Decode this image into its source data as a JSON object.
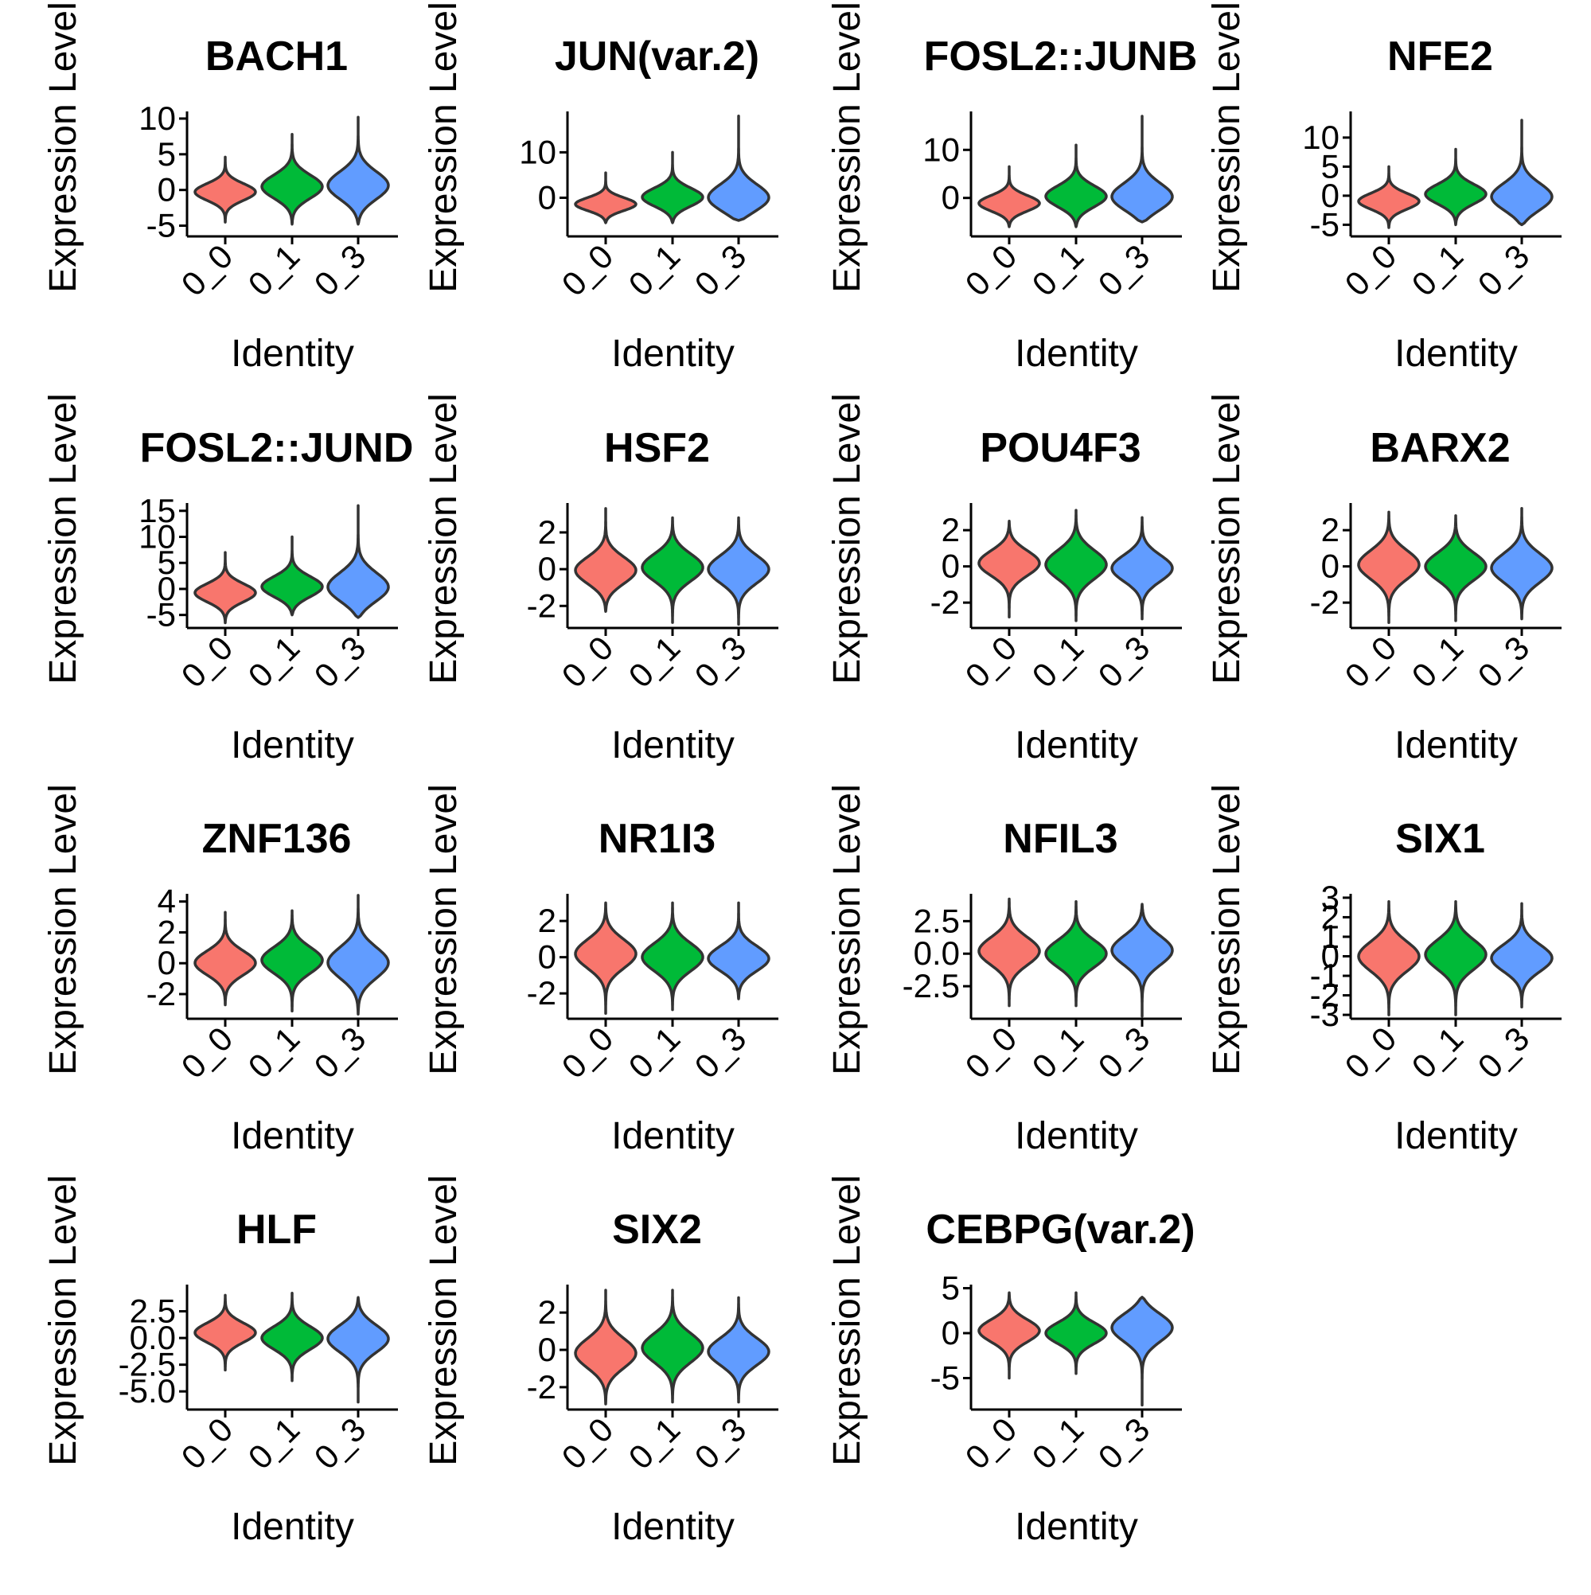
{
  "group_colors": {
    "0_0": "#F8766D",
    "0_1": "#00BA38",
    "0_3": "#619CFF"
  },
  "chart_data": [
    {
      "type": "violin",
      "title": "BACH1",
      "xlabel": "Identity",
      "ylabel": "Expression Level",
      "categories": [
        "0_0",
        "0_1",
        "0_3"
      ],
      "ylim": [
        -6.5,
        11
      ],
      "yticks": [
        -5,
        0,
        5,
        10
      ],
      "ytick_labels": [
        "-5",
        "0",
        "5",
        "10"
      ],
      "series": [
        {
          "name": "0_0",
          "min": -4.5,
          "median": -0.3,
          "max": 4.6
        },
        {
          "name": "0_1",
          "min": -4.8,
          "median": 0.4,
          "max": 7.8
        },
        {
          "name": "0_3",
          "min": -4.8,
          "median": 0.5,
          "max": 10.2
        }
      ]
    },
    {
      "type": "violin",
      "title": "JUN(var.2)",
      "xlabel": "Identity",
      "ylabel": "Expression Level",
      "categories": [
        "0_0",
        "0_1",
        "0_3"
      ],
      "ylim": [
        -8.5,
        19
      ],
      "yticks": [
        0,
        10
      ],
      "ytick_labels": [
        "0",
        "10"
      ],
      "series": [
        {
          "name": "0_0",
          "min": -5.5,
          "median": -1.5,
          "max": 5.5
        },
        {
          "name": "0_1",
          "min": -5.5,
          "median": 0.0,
          "max": 10
        },
        {
          "name": "0_3",
          "min": -5.0,
          "median": -0.5,
          "max": 18
        }
      ]
    },
    {
      "type": "violin",
      "title": "FOSL2::JUNB",
      "xlabel": "Identity",
      "ylabel": "Expression Level",
      "categories": [
        "0_0",
        "0_1",
        "0_3"
      ],
      "ylim": [
        -8,
        18
      ],
      "yticks": [
        0,
        10
      ],
      "ytick_labels": [
        "0",
        "10"
      ],
      "series": [
        {
          "name": "0_0",
          "min": -6,
          "median": -1.2,
          "max": 6.5
        },
        {
          "name": "0_1",
          "min": -6,
          "median": 0.2,
          "max": 11
        },
        {
          "name": "0_3",
          "min": -5,
          "median": -0.2,
          "max": 17
        }
      ]
    },
    {
      "type": "violin",
      "title": "NFE2",
      "xlabel": "Identity",
      "ylabel": "Expression Level",
      "categories": [
        "0_0",
        "0_1",
        "0_3"
      ],
      "ylim": [
        -7,
        14.5
      ],
      "yticks": [
        -5,
        0,
        5,
        10
      ],
      "ytick_labels": [
        "-5",
        "0",
        "5",
        "10"
      ],
      "series": [
        {
          "name": "0_0",
          "min": -5.5,
          "median": -1.0,
          "max": 5.0
        },
        {
          "name": "0_1",
          "min": -5,
          "median": 0.2,
          "max": 8
        },
        {
          "name": "0_3",
          "min": -5,
          "median": -0.5,
          "max": 13
        }
      ]
    },
    {
      "type": "violin",
      "title": "FOSL2::JUND",
      "xlabel": "Identity",
      "ylabel": "Expression Level",
      "categories": [
        "0_0",
        "0_1",
        "0_3"
      ],
      "ylim": [
        -7.5,
        16.5
      ],
      "yticks": [
        -5,
        0,
        5,
        10,
        15
      ],
      "ytick_labels": [
        "-5",
        "0",
        "5",
        "10",
        "15"
      ],
      "series": [
        {
          "name": "0_0",
          "min": -6.5,
          "median": -0.8,
          "max": 7
        },
        {
          "name": "0_1",
          "min": -5,
          "median": 0.3,
          "max": 10
        },
        {
          "name": "0_3",
          "min": -5.5,
          "median": 0.0,
          "max": 16
        }
      ]
    },
    {
      "type": "violin",
      "title": "HSF2",
      "xlabel": "Identity",
      "ylabel": "Expression Level",
      "categories": [
        "0_0",
        "0_1",
        "0_3"
      ],
      "ylim": [
        -3.2,
        3.6
      ],
      "yticks": [
        -2,
        0,
        2
      ],
      "ytick_labels": [
        "-2",
        "0",
        "2"
      ],
      "series": [
        {
          "name": "0_0",
          "min": -2.3,
          "median": -0.1,
          "max": 3.3
        },
        {
          "name": "0_1",
          "min": -2.9,
          "median": 0.1,
          "max": 2.8
        },
        {
          "name": "0_3",
          "min": -3.0,
          "median": 0.0,
          "max": 2.8
        }
      ]
    },
    {
      "type": "violin",
      "title": "POU4F3",
      "xlabel": "Identity",
      "ylabel": "Expression Level",
      "categories": [
        "0_0",
        "0_1",
        "0_3"
      ],
      "ylim": [
        -3.4,
        3.5
      ],
      "yticks": [
        -2,
        0,
        2
      ],
      "ytick_labels": [
        "-2",
        "0",
        "2"
      ],
      "series": [
        {
          "name": "0_0",
          "min": -2.8,
          "median": 0.2,
          "max": 2.5
        },
        {
          "name": "0_1",
          "min": -3.0,
          "median": 0.1,
          "max": 3.1
        },
        {
          "name": "0_3",
          "min": -2.9,
          "median": -0.1,
          "max": 2.7
        }
      ]
    },
    {
      "type": "violin",
      "title": "BARX2",
      "xlabel": "Identity",
      "ylabel": "Expression Level",
      "categories": [
        "0_0",
        "0_1",
        "0_3"
      ],
      "ylim": [
        -3.4,
        3.5
      ],
      "yticks": [
        -2,
        0,
        2
      ],
      "ytick_labels": [
        "-2",
        "0",
        "2"
      ],
      "series": [
        {
          "name": "0_0",
          "min": -3.1,
          "median": 0.1,
          "max": 3.0
        },
        {
          "name": "0_1",
          "min": -3.0,
          "median": 0.0,
          "max": 2.8
        },
        {
          "name": "0_3",
          "min": -2.9,
          "median": -0.1,
          "max": 3.2
        }
      ]
    },
    {
      "type": "violin",
      "title": "ZNF136",
      "xlabel": "Identity",
      "ylabel": "Expression Level",
      "categories": [
        "0_0",
        "0_1",
        "0_3"
      ],
      "ylim": [
        -3.6,
        4.5
      ],
      "yticks": [
        -2,
        0,
        2,
        4
      ],
      "ytick_labels": [
        "-2",
        "0",
        "2",
        "4"
      ],
      "series": [
        {
          "name": "0_0",
          "min": -2.7,
          "median": 0.0,
          "max": 3.3
        },
        {
          "name": "0_1",
          "min": -3.1,
          "median": 0.2,
          "max": 3.4
        },
        {
          "name": "0_3",
          "min": -3.3,
          "median": 0.0,
          "max": 4.4
        }
      ]
    },
    {
      "type": "violin",
      "title": "NR1I3",
      "xlabel": "Identity",
      "ylabel": "Expression Level",
      "categories": [
        "0_0",
        "0_1",
        "0_3"
      ],
      "ylim": [
        -3.4,
        3.5
      ],
      "yticks": [
        -2,
        0,
        2
      ],
      "ytick_labels": [
        "-2",
        "0",
        "2"
      ],
      "series": [
        {
          "name": "0_0",
          "min": -3.1,
          "median": 0.2,
          "max": 3.0
        },
        {
          "name": "0_1",
          "min": -2.9,
          "median": 0.0,
          "max": 3.0
        },
        {
          "name": "0_3",
          "min": -2.3,
          "median": -0.1,
          "max": 3.0
        }
      ]
    },
    {
      "type": "violin",
      "title": "NFIL3",
      "xlabel": "Identity",
      "ylabel": "Expression Level",
      "categories": [
        "0_0",
        "0_1",
        "0_3"
      ],
      "ylim": [
        -5.0,
        4.6
      ],
      "yticks": [
        -2.5,
        0.0,
        2.5
      ],
      "ytick_labels": [
        "-2.5",
        "0.0",
        "2.5"
      ],
      "series": [
        {
          "name": "0_0",
          "min": -4.0,
          "median": 0.2,
          "max": 4.2
        },
        {
          "name": "0_1",
          "min": -4.0,
          "median": 0.0,
          "max": 4.0
        },
        {
          "name": "0_3",
          "min": -4.8,
          "median": 0.3,
          "max": 3.8
        }
      ]
    },
    {
      "type": "violin",
      "title": "SIX1",
      "xlabel": "Identity",
      "ylabel": "Expression Level",
      "categories": [
        "0_0",
        "0_1",
        "0_3"
      ],
      "ylim": [
        -3.2,
        3.2
      ],
      "yticks": [
        -3,
        -2,
        -1,
        0,
        1,
        2,
        3
      ],
      "ytick_labels": [
        "-3",
        "-2",
        "-1",
        "0",
        "1",
        "2",
        "3"
      ],
      "series": [
        {
          "name": "0_0",
          "min": -3.0,
          "median": 0.0,
          "max": 2.8
        },
        {
          "name": "0_1",
          "min": -3.0,
          "median": 0.1,
          "max": 2.8
        },
        {
          "name": "0_3",
          "min": -2.6,
          "median": -0.1,
          "max": 2.7
        }
      ]
    },
    {
      "type": "violin",
      "title": "HLF",
      "xlabel": "Identity",
      "ylabel": "Expression Level",
      "categories": [
        "0_0",
        "0_1",
        "0_3"
      ],
      "ylim": [
        -6.7,
        5
      ],
      "yticks": [
        -5.0,
        -2.5,
        0.0,
        2.5
      ],
      "ytick_labels": [
        "-5.0",
        "-2.5",
        "0.0",
        "2.5"
      ],
      "series": [
        {
          "name": "0_0",
          "min": -3.0,
          "median": 0.5,
          "max": 4.0
        },
        {
          "name": "0_1",
          "min": -4.0,
          "median": 0.0,
          "max": 4.2
        },
        {
          "name": "0_3",
          "min": -6.0,
          "median": 0.0,
          "max": 3.8
        }
      ]
    },
    {
      "type": "violin",
      "title": "SIX2",
      "xlabel": "Identity",
      "ylabel": "Expression Level",
      "categories": [
        "0_0",
        "0_1",
        "0_3"
      ],
      "ylim": [
        -3.2,
        3.5
      ],
      "yticks": [
        -2,
        0,
        2
      ],
      "ytick_labels": [
        "-2",
        "0",
        "2"
      ],
      "series": [
        {
          "name": "0_0",
          "min": -2.9,
          "median": -0.2,
          "max": 3.2
        },
        {
          "name": "0_1",
          "min": -2.8,
          "median": 0.1,
          "max": 3.2
        },
        {
          "name": "0_3",
          "min": -2.8,
          "median": -0.1,
          "max": 2.8
        }
      ]
    },
    {
      "type": "violin",
      "title": "CEBPG(var.2)",
      "xlabel": "Identity",
      "ylabel": "Expression Level",
      "categories": [
        "0_0",
        "0_1",
        "0_3"
      ],
      "ylim": [
        -8.5,
        5.4
      ],
      "yticks": [
        -5,
        0,
        5
      ],
      "ytick_labels": [
        "-5",
        "0",
        "5"
      ],
      "series": [
        {
          "name": "0_0",
          "min": -5.0,
          "median": 0.3,
          "max": 4.5
        },
        {
          "name": "0_1",
          "min": -4.5,
          "median": 0.0,
          "max": 4.5
        },
        {
          "name": "0_3",
          "min": -8.0,
          "median": 0.8,
          "max": 4.0
        }
      ]
    }
  ]
}
